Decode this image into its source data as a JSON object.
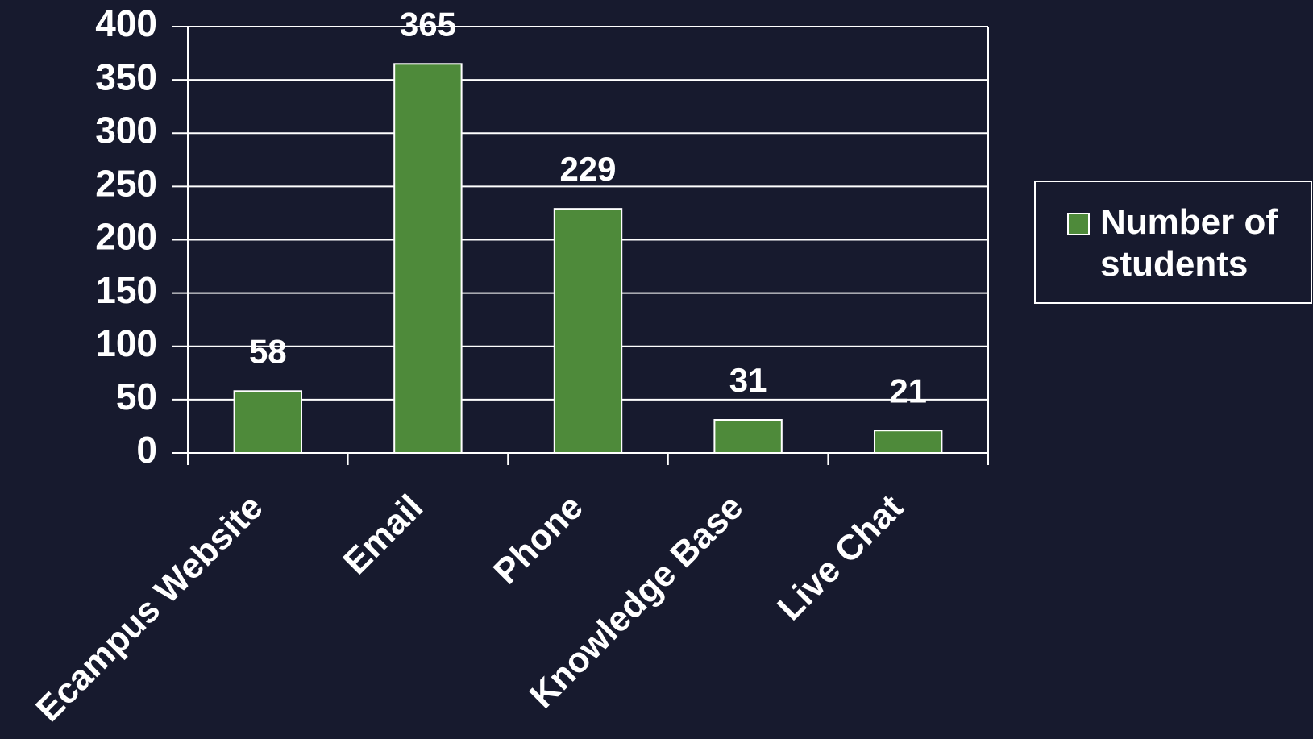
{
  "chart_data": {
    "type": "bar",
    "categories": [
      "Ecampus Website",
      "Email",
      "Phone",
      "Knowledge Base",
      "Live Chat"
    ],
    "series": [
      {
        "name": "Number of students",
        "color": "#4e8a3a",
        "values": [
          58,
          365,
          229,
          31,
          21
        ]
      }
    ],
    "ylim": [
      0,
      400
    ],
    "yticks": [
      0,
      50,
      100,
      150,
      200,
      250,
      300,
      350,
      400
    ],
    "grid": true,
    "legend": "right"
  }
}
